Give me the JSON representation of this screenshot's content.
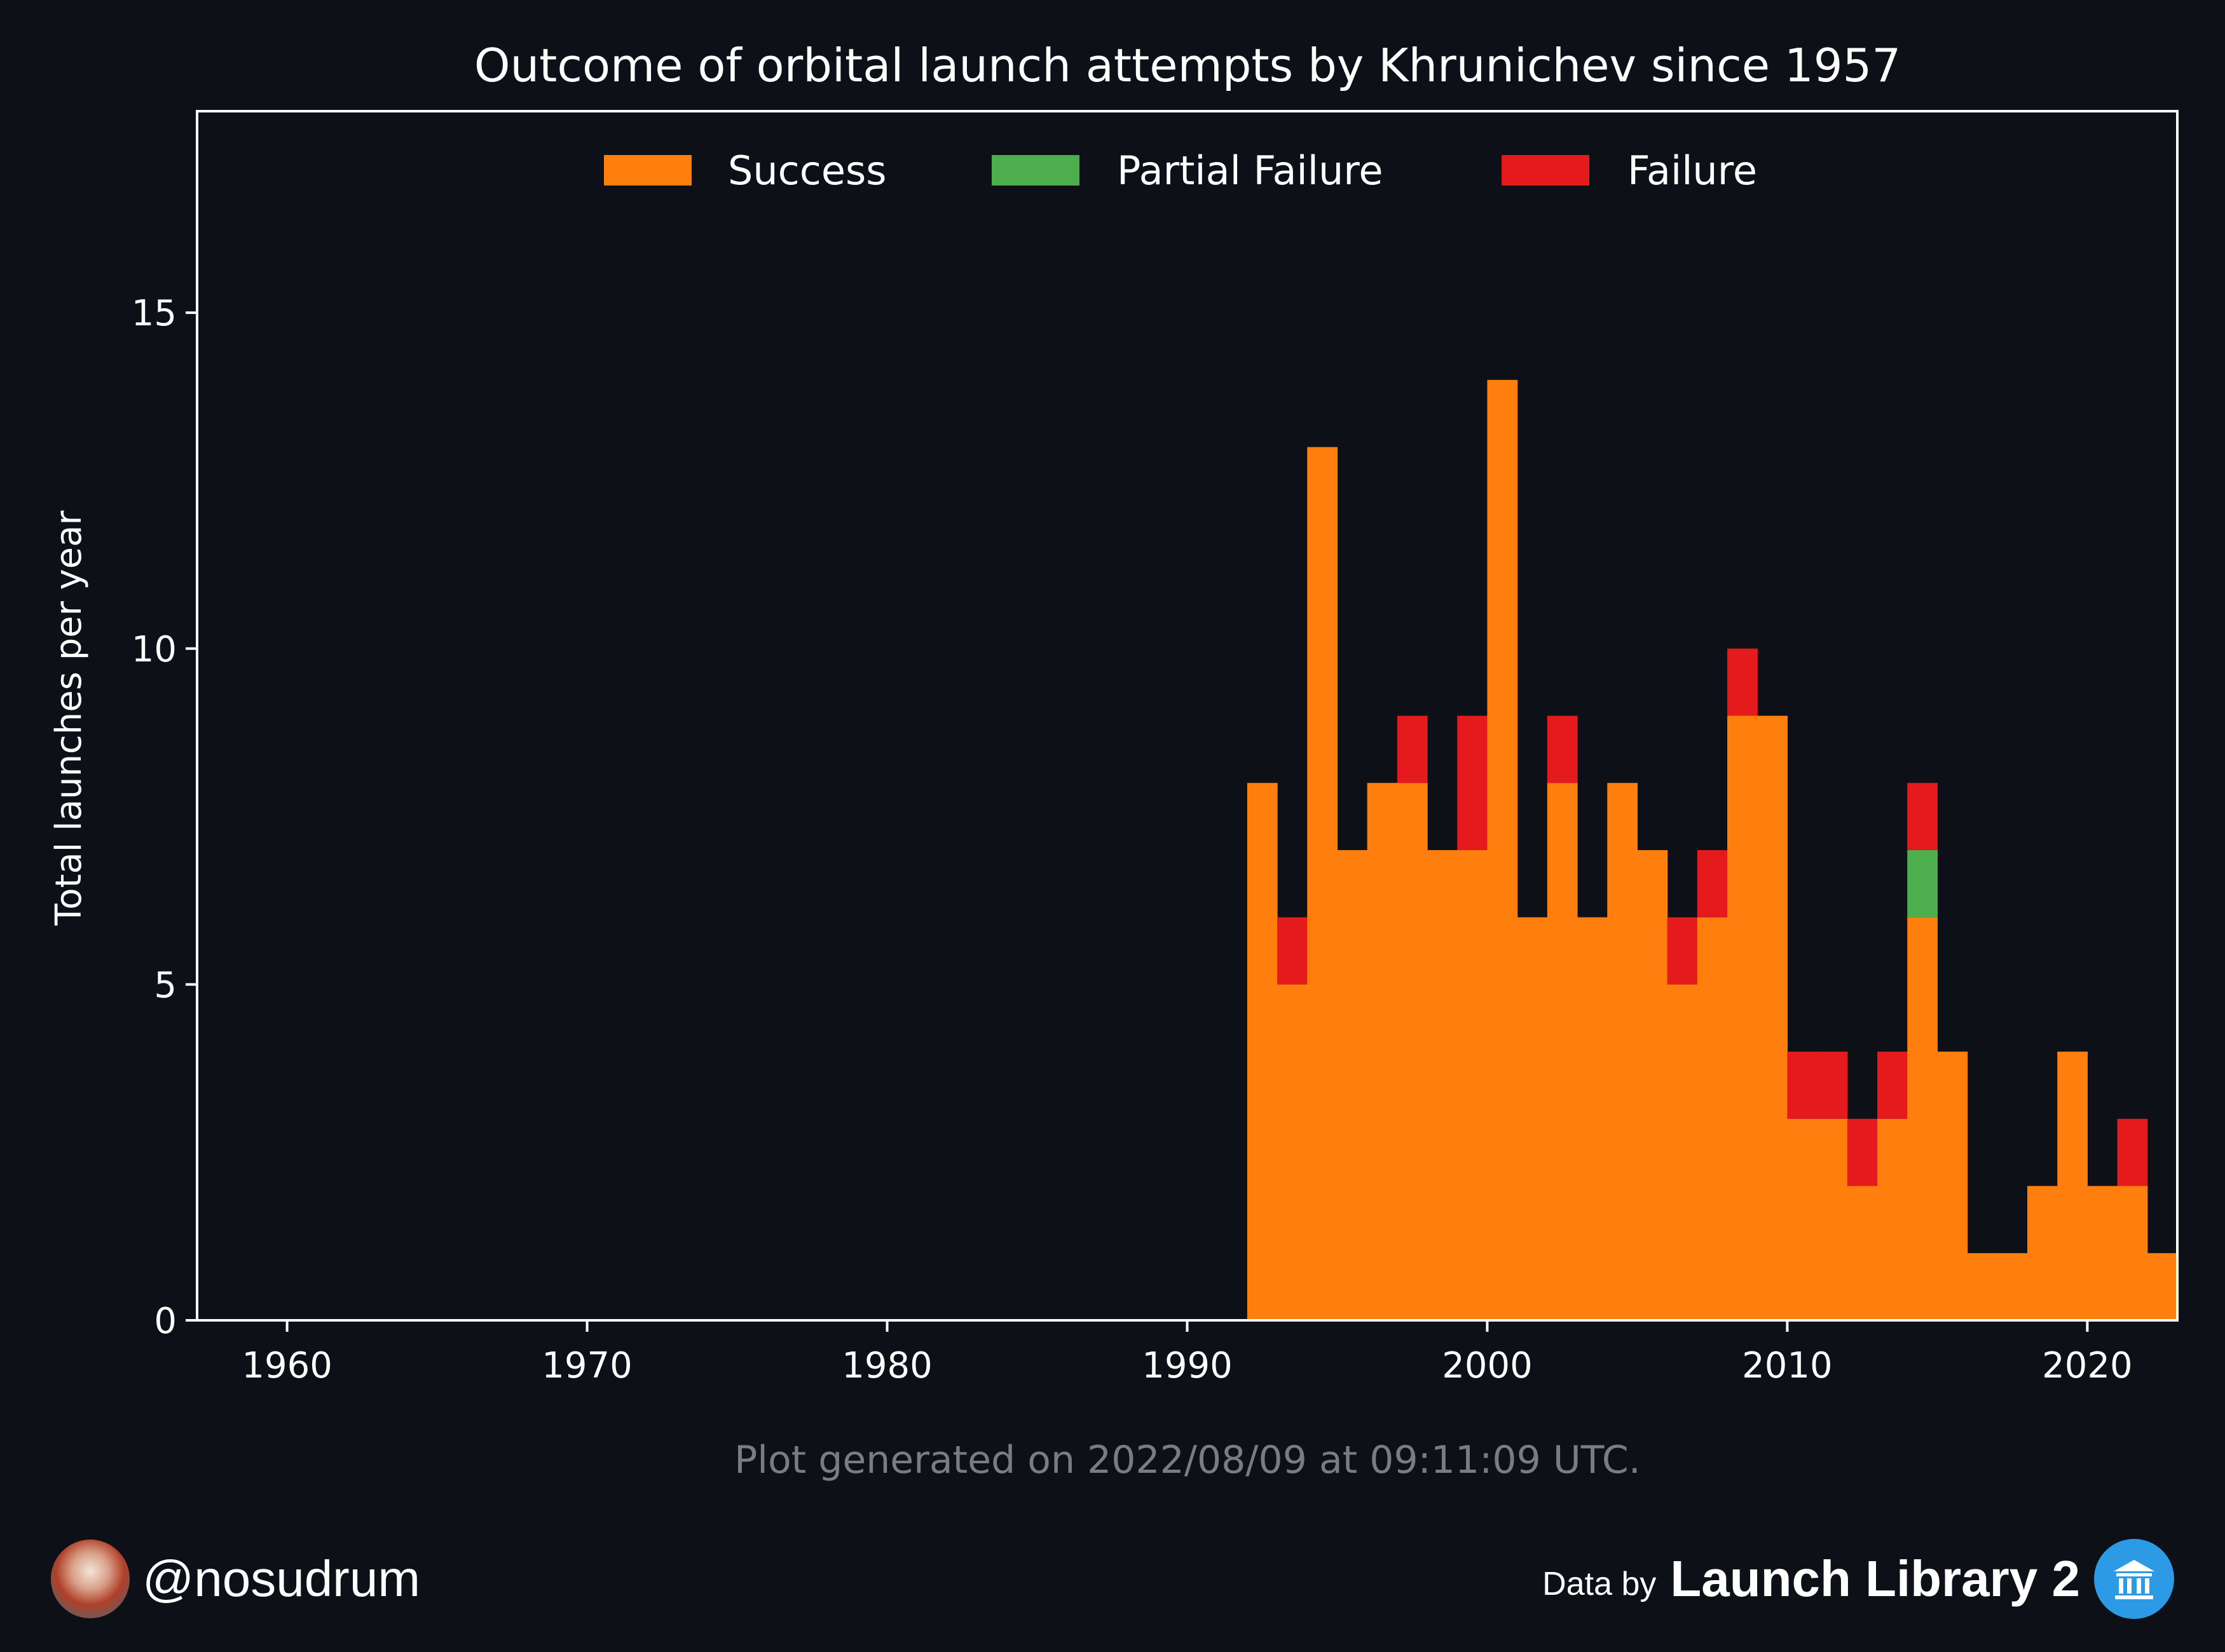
{
  "chart_data": {
    "type": "bar",
    "stacked": true,
    "title": "Outcome of orbital launch attempts by Khrunichev since 1957",
    "xlabel": "",
    "ylabel": "Total launches per year",
    "xlim": [
      1957,
      2023
    ],
    "ylim": [
      0,
      18
    ],
    "x_ticks": [
      1960,
      1970,
      1980,
      1990,
      2000,
      2010,
      2020
    ],
    "y_ticks": [
      0,
      5,
      10,
      15
    ],
    "legend_position": "top-center",
    "grid": false,
    "x": [
      1992,
      1993,
      1994,
      1995,
      1996,
      1997,
      1998,
      1999,
      2000,
      2001,
      2002,
      2003,
      2004,
      2005,
      2006,
      2007,
      2008,
      2009,
      2010,
      2011,
      2012,
      2013,
      2014,
      2015,
      2016,
      2017,
      2018,
      2019,
      2020,
      2021,
      2022
    ],
    "series": [
      {
        "name": "Success",
        "color": "#ff7f0e",
        "values": [
          8,
          5,
          13,
          7,
          8,
          8,
          7,
          7,
          14,
          6,
          8,
          6,
          8,
          7,
          5,
          6,
          9,
          9,
          3,
          3,
          2,
          3,
          6,
          4,
          1,
          1,
          2,
          4,
          2,
          2,
          1
        ]
      },
      {
        "name": "Partial Failure",
        "color": "#4cae4c",
        "values": [
          0,
          0,
          0,
          0,
          0,
          0,
          0,
          0,
          0,
          0,
          0,
          0,
          0,
          0,
          0,
          0,
          0,
          0,
          0,
          0,
          0,
          0,
          1,
          0,
          0,
          0,
          0,
          0,
          0,
          0,
          0
        ]
      },
      {
        "name": "Failure",
        "color": "#e41a1c",
        "values": [
          0,
          1,
          0,
          0,
          0,
          1,
          0,
          2,
          0,
          0,
          1,
          0,
          0,
          0,
          1,
          1,
          1,
          0,
          1,
          1,
          1,
          1,
          1,
          0,
          0,
          0,
          0,
          0,
          0,
          1,
          0
        ]
      }
    ]
  },
  "note": "Plot generated on 2022/08/09 at 09:11:09 UTC.",
  "footer": {
    "handle": "@nosudrum",
    "credit_prefix": "Data by",
    "credit_brand": "Launch Library 2",
    "avatar_icon": "astronaut-avatar",
    "brand_icon": "launch-library-icon"
  },
  "colors": {
    "background": "#0d1017",
    "axes": "#ffffff",
    "note": "#7a7c80",
    "brand_icon": "#2c9ae5"
  }
}
